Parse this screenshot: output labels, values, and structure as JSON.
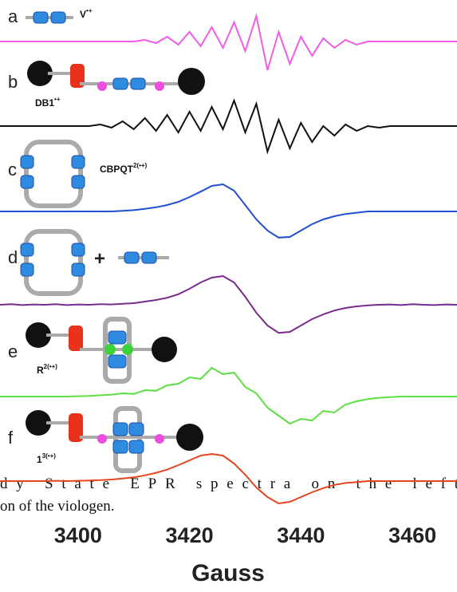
{
  "chart_data": {
    "type": "line",
    "xlabel": "Gauss",
    "xlim": [
      3386,
      3468
    ],
    "xticks": [
      3400,
      3420,
      3440,
      3460
    ],
    "x": [
      3386,
      3388,
      3390,
      3392,
      3394,
      3396,
      3398,
      3400,
      3402,
      3404,
      3406,
      3408,
      3410,
      3412,
      3414,
      3416,
      3418,
      3420,
      3422,
      3424,
      3426,
      3428,
      3430,
      3432,
      3434,
      3436,
      3438,
      3440,
      3442,
      3444,
      3446,
      3448,
      3450,
      3452,
      3454,
      3456,
      3458,
      3460,
      3462,
      3464,
      3466,
      3468
    ],
    "panels": [
      {
        "letter": "a",
        "label": "V",
        "label_sup": "•+"
      },
      {
        "letter": "b",
        "label": "DB1",
        "label_sup": "•+"
      },
      {
        "letter": "c",
        "label": "CBPQT",
        "label_sup": "2(•+)"
      },
      {
        "letter": "d",
        "extra": "+"
      },
      {
        "letter": "e",
        "label": "R",
        "label_sup": "2(•+)"
      },
      {
        "letter": "f",
        "label": "1",
        "label_sup": "3(•+)"
      }
    ],
    "caption_lines": [
      "dy State EPR spectra on the left",
      "on of the viologen."
    ],
    "series": [
      {
        "color": "#ee5ce8",
        "values": [
          0,
          0,
          0,
          0,
          0,
          0,
          0,
          0,
          0,
          0,
          0,
          0,
          0,
          0.05,
          -0.05,
          0.15,
          -0.1,
          0.3,
          -0.15,
          0.45,
          -0.2,
          0.6,
          -0.3,
          0.8,
          -0.9,
          0.3,
          -0.7,
          0.15,
          -0.45,
          0.1,
          -0.2,
          0.05,
          -0.1,
          0,
          0,
          0,
          0,
          0,
          0,
          0,
          0,
          0
        ]
      },
      {
        "color": "#111111",
        "values": [
          0,
          0,
          0,
          0,
          0,
          0,
          0,
          0,
          0,
          0.05,
          -0.05,
          0.15,
          -0.1,
          0.25,
          -0.15,
          0.35,
          -0.2,
          0.45,
          -0.15,
          0.6,
          -0.1,
          0.8,
          -0.2,
          0.7,
          -0.8,
          0.2,
          -0.7,
          0.1,
          -0.5,
          0,
          -0.3,
          0.05,
          -0.15,
          0,
          -0.05,
          0,
          0,
          0,
          0,
          0,
          0,
          0
        ]
      },
      {
        "color": "#1f4fd0",
        "values": [
          0,
          0,
          0,
          0,
          0,
          0,
          0,
          0,
          0,
          0,
          0,
          0.02,
          0.04,
          0.08,
          0.13,
          0.2,
          0.3,
          0.45,
          0.62,
          0.8,
          0.85,
          0.65,
          0.2,
          -0.25,
          -0.6,
          -0.82,
          -0.8,
          -0.6,
          -0.4,
          -0.25,
          -0.15,
          -0.08,
          -0.04,
          0,
          0,
          0,
          0,
          0,
          0,
          0,
          0,
          0
        ]
      },
      {
        "color": "#7a2a8a",
        "values": [
          0,
          0.02,
          -0.01,
          0.01,
          0,
          0.02,
          -0.01,
          0.01,
          0,
          0.02,
          0.01,
          0.03,
          0.05,
          0.1,
          0.15,
          0.22,
          0.33,
          0.5,
          0.7,
          0.85,
          0.9,
          0.7,
          0.25,
          -0.25,
          -0.65,
          -0.88,
          -0.85,
          -0.65,
          -0.45,
          -0.3,
          -0.18,
          -0.1,
          -0.05,
          -0.02,
          0,
          0.01,
          -0.01,
          0.02,
          0,
          -0.01,
          0.01,
          0
        ]
      },
      {
        "color": "#5be040",
        "values": [
          0,
          0,
          0,
          0,
          0,
          0,
          0,
          0.01,
          0.02,
          0.04,
          0.06,
          0.1,
          0.08,
          0.2,
          0.18,
          0.35,
          0.4,
          0.6,
          0.55,
          0.9,
          0.7,
          0.75,
          0.3,
          0.1,
          -0.35,
          -0.6,
          -0.85,
          -0.7,
          -0.75,
          -0.45,
          -0.5,
          -0.25,
          -0.15,
          -0.08,
          -0.04,
          -0.02,
          0,
          0,
          0,
          0,
          0,
          0
        ]
      },
      {
        "color": "#e2461e",
        "values": [
          0,
          0,
          0,
          0,
          0,
          0.01,
          0,
          0.01,
          0.02,
          0.03,
          0.05,
          0.08,
          0.12,
          0.18,
          0.26,
          0.36,
          0.5,
          0.65,
          0.8,
          0.85,
          0.8,
          0.55,
          0.2,
          -0.2,
          -0.5,
          -0.7,
          -0.65,
          -0.5,
          -0.35,
          -0.22,
          -0.12,
          -0.06,
          -0.03,
          0,
          0,
          0,
          0,
          0,
          0,
          0,
          0,
          0
        ]
      }
    ]
  }
}
